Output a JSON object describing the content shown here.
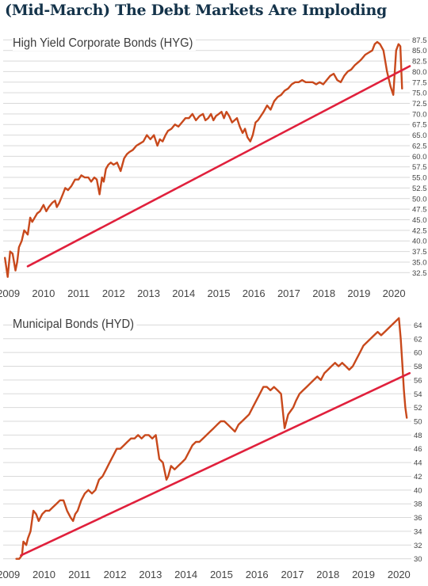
{
  "page": {
    "headline": "(Mid-March) The Debt Markets Are Imploding"
  },
  "colors": {
    "price_line": "#c8491c",
    "trend_line": "#e0203c",
    "grid": "#d9d9d9",
    "headline": "#14334a"
  },
  "chart_data": [
    {
      "type": "line",
      "title": "High Yield Corporate Bonds (HYG)",
      "xlabel": "",
      "ylabel": "",
      "xlim": [
        2008.85,
        2020.45
      ],
      "ylim": [
        30.5,
        88.5
      ],
      "x_ticks": [
        "2009",
        "2010",
        "2011",
        "2012",
        "2013",
        "2014",
        "2015",
        "2016",
        "2017",
        "2018",
        "2019",
        "2020"
      ],
      "y_ticks": [
        "32.5",
        "35.0",
        "37.5",
        "40.0",
        "42.5",
        "45.0",
        "47.5",
        "50.0",
        "52.5",
        "55.0",
        "57.5",
        "60.0",
        "62.5",
        "65.0",
        "67.5",
        "70.0",
        "72.5",
        "75.0",
        "77.5",
        "80.0",
        "82.5",
        "85.0",
        "87.5"
      ],
      "grid": "horizontal",
      "series": [
        {
          "role": "price",
          "x": [
            2008.9,
            2008.98,
            2009.05,
            2009.12,
            2009.2,
            2009.25,
            2009.3,
            2009.38,
            2009.45,
            2009.55,
            2009.62,
            2009.68,
            2009.75,
            2009.82,
            2009.9,
            2010.0,
            2010.08,
            2010.15,
            2010.25,
            2010.33,
            2010.38,
            2010.45,
            2010.55,
            2010.62,
            2010.7,
            2010.8,
            2010.9,
            2011.0,
            2011.08,
            2011.18,
            2011.28,
            2011.36,
            2011.45,
            2011.52,
            2011.6,
            2011.67,
            2011.72,
            2011.78,
            2011.85,
            2011.92,
            2012.0,
            2012.1,
            2012.2,
            2012.3,
            2012.38,
            2012.45,
            2012.55,
            2012.65,
            2012.75,
            2012.85,
            2012.95,
            2013.05,
            2013.15,
            2013.25,
            2013.32,
            2013.4,
            2013.48,
            2013.55,
            2013.65,
            2013.75,
            2013.85,
            2013.95,
            2014.05,
            2014.15,
            2014.25,
            2014.35,
            2014.45,
            2014.55,
            2014.62,
            2014.7,
            2014.78,
            2014.85,
            2014.92,
            2015.0,
            2015.08,
            2015.15,
            2015.22,
            2015.3,
            2015.38,
            2015.45,
            2015.52,
            2015.6,
            2015.68,
            2015.75,
            2015.82,
            2015.9,
            2015.97,
            2016.05,
            2016.12,
            2016.2,
            2016.28,
            2016.38,
            2016.48,
            2016.58,
            2016.68,
            2016.78,
            2016.88,
            2016.98,
            2017.08,
            2017.18,
            2017.28,
            2017.38,
            2017.48,
            2017.58,
            2017.68,
            2017.78,
            2017.88,
            2017.98,
            2018.08,
            2018.18,
            2018.28,
            2018.38,
            2018.48,
            2018.58,
            2018.68,
            2018.78,
            2018.88,
            2018.95,
            2019.02,
            2019.08,
            2019.18,
            2019.28,
            2019.38,
            2019.45,
            2019.52,
            2019.6,
            2019.7,
            2019.8,
            2019.9,
            2019.98,
            2020.06,
            2020.13,
            2020.18,
            2020.23
          ],
          "values": [
            36.0,
            31.5,
            37.5,
            37.0,
            33.0,
            35.0,
            38.5,
            40.0,
            42.5,
            41.5,
            45.5,
            44.5,
            45.5,
            46.5,
            47.0,
            48.5,
            47.0,
            48.0,
            49.0,
            49.5,
            48.0,
            49.0,
            51.0,
            52.5,
            52.0,
            53.0,
            54.5,
            54.5,
            55.5,
            55.0,
            55.0,
            54.0,
            55.0,
            54.5,
            51.0,
            55.0,
            54.0,
            57.0,
            58.0,
            58.5,
            58.0,
            58.5,
            56.5,
            59.5,
            60.5,
            61.0,
            61.5,
            62.5,
            63.0,
            63.5,
            65.0,
            64.0,
            65.0,
            62.5,
            64.0,
            63.5,
            65.0,
            66.0,
            66.5,
            67.5,
            67.0,
            68.0,
            69.0,
            69.0,
            70.0,
            68.5,
            69.5,
            70.0,
            68.5,
            69.0,
            70.0,
            68.5,
            69.5,
            70.0,
            70.5,
            69.0,
            70.5,
            69.5,
            68.0,
            68.5,
            69.0,
            67.0,
            65.5,
            66.5,
            64.5,
            63.5,
            65.0,
            68.0,
            68.5,
            69.5,
            70.5,
            72.0,
            71.0,
            73.0,
            74.0,
            74.5,
            75.5,
            76.0,
            77.0,
            77.5,
            77.5,
            78.0,
            77.5,
            77.5,
            77.5,
            77.0,
            77.5,
            77.0,
            78.0,
            79.0,
            79.5,
            78.0,
            77.5,
            79.0,
            80.0,
            80.5,
            81.5,
            82.0,
            82.5,
            83.0,
            84.0,
            84.5,
            85.0,
            86.5,
            87.0,
            86.5,
            85.0,
            80.0,
            76.5,
            74.5,
            85.0,
            86.5,
            86.0,
            76.0
          ]
        },
        {
          "role": "trend",
          "x": [
            2009.55,
            2020.45
          ],
          "values": [
            34.0,
            81.3
          ]
        }
      ]
    },
    {
      "type": "line",
      "title": "Municipal Bonds (HYD)",
      "xlabel": "",
      "ylabel": "",
      "xlim": [
        2008.85,
        2020.35
      ],
      "ylim": [
        29.5,
        65.2
      ],
      "x_ticks": [
        "2009",
        "2010",
        "2011",
        "2012",
        "2013",
        "2014",
        "2015",
        "2016",
        "2017",
        "2018",
        "2019",
        "2020"
      ],
      "y_ticks": [
        "30",
        "32",
        "34",
        "36",
        "38",
        "40",
        "42",
        "44",
        "46",
        "48",
        "50",
        "52",
        "54",
        "56",
        "58",
        "60",
        "62",
        "64"
      ],
      "grid": "horizontal",
      "series": [
        {
          "role": "price",
          "x": [
            2009.22,
            2009.3,
            2009.38,
            2009.42,
            2009.5,
            2009.55,
            2009.62,
            2009.7,
            2009.78,
            2009.85,
            2009.95,
            2010.05,
            2010.15,
            2010.25,
            2010.35,
            2010.45,
            2010.55,
            2010.65,
            2010.75,
            2010.82,
            2010.88,
            2010.95,
            2011.05,
            2011.15,
            2011.25,
            2011.35,
            2011.45,
            2011.55,
            2011.65,
            2011.75,
            2011.85,
            2011.95,
            2012.05,
            2012.15,
            2012.25,
            2012.35,
            2012.45,
            2012.55,
            2012.65,
            2012.75,
            2012.85,
            2012.95,
            2013.05,
            2013.15,
            2013.25,
            2013.35,
            2013.45,
            2013.5,
            2013.58,
            2013.68,
            2013.78,
            2013.88,
            2013.98,
            2014.08,
            2014.18,
            2014.28,
            2014.38,
            2014.48,
            2014.58,
            2014.68,
            2014.78,
            2014.88,
            2014.98,
            2015.08,
            2015.18,
            2015.28,
            2015.38,
            2015.48,
            2015.58,
            2015.68,
            2015.78,
            2015.88,
            2015.98,
            2016.08,
            2016.18,
            2016.28,
            2016.38,
            2016.48,
            2016.58,
            2016.68,
            2016.78,
            2016.88,
            2016.95,
            2017.02,
            2017.1,
            2017.2,
            2017.3,
            2017.4,
            2017.5,
            2017.6,
            2017.7,
            2017.8,
            2017.9,
            2018.0,
            2018.1,
            2018.2,
            2018.3,
            2018.4,
            2018.5,
            2018.6,
            2018.7,
            2018.8,
            2018.9,
            2019.0,
            2019.1,
            2019.2,
            2019.3,
            2019.4,
            2019.5,
            2019.6,
            2019.7,
            2019.8,
            2019.9,
            2020.0,
            2020.05,
            2020.1,
            2020.14,
            2020.18,
            2020.22
          ],
          "values": [
            30.0,
            30.0,
            30.5,
            32.5,
            32.0,
            33.0,
            34.0,
            37.0,
            36.5,
            35.5,
            36.5,
            37.0,
            37.0,
            37.5,
            38.0,
            38.5,
            38.5,
            37.0,
            36.0,
            35.5,
            36.5,
            37.0,
            38.5,
            39.5,
            40.0,
            39.5,
            40.0,
            41.5,
            42.0,
            43.0,
            44.0,
            45.0,
            46.0,
            46.0,
            46.5,
            47.0,
            47.5,
            47.5,
            48.0,
            47.5,
            48.0,
            48.0,
            47.5,
            48.0,
            44.5,
            44.0,
            41.5,
            42.0,
            43.5,
            43.0,
            43.5,
            44.0,
            44.5,
            45.5,
            46.5,
            47.0,
            47.0,
            47.5,
            48.0,
            48.5,
            49.0,
            49.5,
            50.0,
            50.0,
            49.5,
            49.0,
            48.5,
            49.5,
            50.0,
            50.5,
            51.0,
            52.0,
            53.0,
            54.0,
            55.0,
            55.0,
            54.5,
            55.0,
            54.5,
            54.0,
            49.0,
            51.0,
            51.5,
            52.0,
            53.0,
            54.0,
            54.5,
            55.0,
            55.5,
            56.0,
            56.5,
            56.0,
            57.0,
            57.5,
            58.0,
            58.5,
            58.0,
            58.5,
            58.0,
            57.5,
            58.0,
            59.0,
            60.0,
            61.0,
            61.5,
            62.0,
            62.5,
            63.0,
            62.5,
            63.0,
            63.5,
            64.0,
            64.5,
            65.0,
            62.0,
            58.0,
            54.5,
            52.0,
            50.5
          ]
        },
        {
          "role": "trend",
          "x": [
            2009.35,
            2020.3
          ],
          "values": [
            30.5,
            57.0
          ]
        }
      ]
    }
  ]
}
